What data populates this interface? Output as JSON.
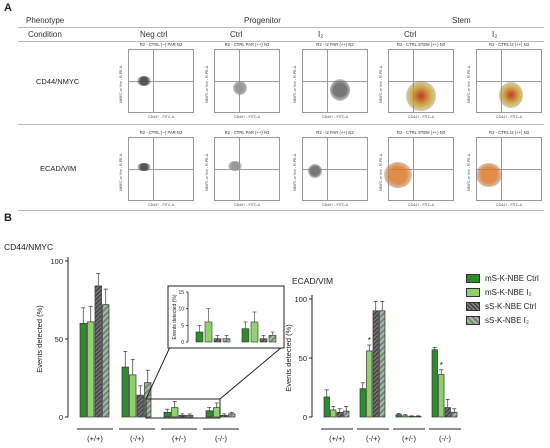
{
  "panel_a": {
    "label": "A",
    "header": {
      "phenotype_label": "Phenotype",
      "condition_label": "Condition",
      "groups": [
        "Progenitor",
        "Stem"
      ],
      "conditions": [
        "Neg ctrl",
        "Ctrl",
        "I₂",
        "Ctrl",
        "I₂"
      ]
    },
    "rows": [
      {
        "label": "CD44/NMYC",
        "plots": [
          {
            "title": "R2 - CTRL (--) PAR N3"
          },
          {
            "title": "R2 - CTRL PAR (++) N3"
          },
          {
            "title": "R2 - I2 PAR (++) N3"
          },
          {
            "title": "R2 - CTRL STEM (++) N3"
          },
          {
            "title": "R2 - CTRL I2 (++) N3"
          }
        ]
      },
      {
        "label": "ECAD/VIM",
        "plots": [
          {
            "title": "R2 - CTRL (--) PAR N3"
          },
          {
            "title": "R2 - CTRL PAR (++) N3"
          },
          {
            "title": "R2 - I2 PAR (++) N3"
          },
          {
            "title": "R2 - CTRL STEM (++) N3"
          },
          {
            "title": "R2 - CTRL I2 (++) N3"
          }
        ]
      }
    ],
    "axis_x": "CD44+ - FITC-A",
    "axis_y": "NMYC or Vim - R-PE-A"
  },
  "panel_b": {
    "label": "B"
  },
  "legend": [
    {
      "name": "mS-K-NBE Ctrl",
      "color": "#2e8b2e",
      "pattern": "solid"
    },
    {
      "name": "mS-K-NBE I₂",
      "color": "#8fd16b",
      "pattern": "solid"
    },
    {
      "name": "sS-K-NBE Ctrl",
      "color": "#555555",
      "pattern": "hatch-gray"
    },
    {
      "name": "sS-K-NBE I₂",
      "color": "#8fd16b",
      "pattern": "hatch-purple"
    }
  ],
  "chart_data": [
    {
      "type": "bar",
      "title": "CD44/NMYC",
      "ylabel": "Events detected (%)",
      "ylim": [
        0,
        100
      ],
      "yticks": [
        0,
        50,
        100
      ],
      "categories": [
        "(+/+)",
        "(-/+)",
        "(+/-)",
        "(-/-)"
      ],
      "series": [
        {
          "name": "mS-K-NBE Ctrl",
          "values": [
            60,
            32,
            3,
            4
          ],
          "errors": [
            10,
            10,
            2,
            2
          ]
        },
        {
          "name": "mS-K-NBE I₂",
          "values": [
            61,
            27,
            6,
            6
          ],
          "errors": [
            10,
            10,
            4,
            3
          ]
        },
        {
          "name": "sS-K-NBE Ctrl",
          "values": [
            84,
            14,
            1,
            1
          ],
          "errors": [
            8,
            6,
            1,
            1
          ]
        },
        {
          "name": "sS-K-NBE I₂",
          "values": [
            72,
            22,
            1,
            2
          ],
          "errors": [
            10,
            8,
            1,
            1
          ]
        }
      ],
      "inset": {
        "ylabel": "Events detected (%)",
        "ylim": [
          0,
          15
        ],
        "yticks": [
          0,
          5,
          10,
          15
        ],
        "categories": [
          "(+/-)",
          "(-/-)"
        ]
      }
    },
    {
      "type": "bar",
      "title": "ECAD/VIM",
      "ylabel": "Events detected (%)",
      "ylim": [
        0,
        100
      ],
      "yticks": [
        0,
        50,
        100
      ],
      "categories": [
        "(+/+)",
        "(-/+)",
        "(+/-)",
        "(-/-)"
      ],
      "series": [
        {
          "name": "mS-K-NBE Ctrl",
          "values": [
            17,
            24,
            2,
            57
          ],
          "errors": [
            6,
            5,
            1,
            2
          ]
        },
        {
          "name": "mS-K-NBE I₂",
          "values": [
            6,
            56,
            1,
            36
          ],
          "errors": [
            3,
            5,
            1,
            4
          ]
        },
        {
          "name": "sS-K-NBE Ctrl",
          "values": [
            4,
            90,
            0.5,
            8
          ],
          "errors": [
            3,
            8,
            0.5,
            7
          ]
        },
        {
          "name": "sS-K-NBE I₂",
          "values": [
            5,
            90,
            0.5,
            4
          ],
          "errors": [
            4,
            8,
            0.5,
            3
          ]
        }
      ],
      "annotations": [
        {
          "text": "*",
          "category": "(-/+)",
          "series": "mS-K-NBE I₂"
        },
        {
          "text": "*",
          "category": "(-/-)",
          "series": "mS-K-NBE I₂"
        }
      ]
    }
  ]
}
